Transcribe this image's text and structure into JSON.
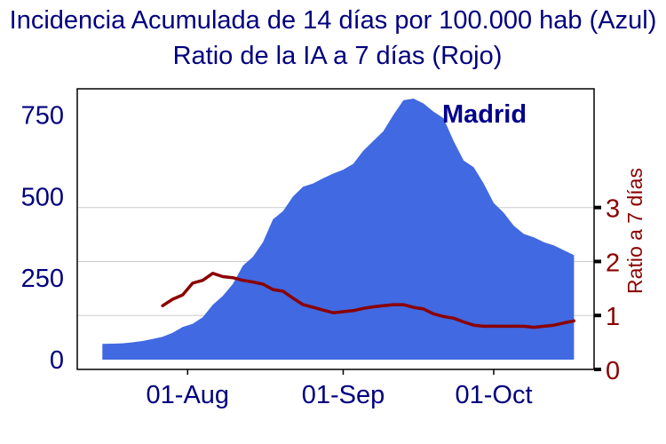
{
  "chart_data": {
    "type": "area",
    "title_line1": "Incidencia Acumulada de 14 días por 100.000 hab (Azul)",
    "title_line2": "Ratio de la IA a 7 días (Rojo)",
    "annotation": "Madrid",
    "x_ticks": [
      "01-Aug",
      "01-Sep",
      "01-Oct"
    ],
    "y_left_ticks": [
      "0",
      "250",
      "500",
      "750"
    ],
    "y_left_lim": [
      -30,
      830
    ],
    "y_right_ticks": [
      "0",
      "1",
      "2",
      "3"
    ],
    "y_right_lim": [
      0,
      5.2
    ],
    "ylabel_right": "Ratio a 7 días",
    "colors": {
      "area": "#4169e1",
      "ratio_line": "#8b0000",
      "left_axis_text": "#00007f",
      "right_axis_text": "#8b0000",
      "grid": "#cccccc"
    },
    "grid": true,
    "series": [
      {
        "type": "area",
        "axis": "left",
        "x": [
          "2020-07-15",
          "2020-07-17",
          "2020-07-19",
          "2020-07-21",
          "2020-07-23",
          "2020-07-25",
          "2020-07-27",
          "2020-07-29",
          "2020-07-31",
          "2020-08-02",
          "2020-08-04",
          "2020-08-06",
          "2020-08-08",
          "2020-08-10",
          "2020-08-12",
          "2020-08-14",
          "2020-08-16",
          "2020-08-18",
          "2020-08-20",
          "2020-08-22",
          "2020-08-24",
          "2020-08-26",
          "2020-08-28",
          "2020-08-30",
          "2020-09-01",
          "2020-09-03",
          "2020-09-05",
          "2020-09-07",
          "2020-09-09",
          "2020-09-11",
          "2020-09-13",
          "2020-09-15",
          "2020-09-17",
          "2020-09-19",
          "2020-09-21",
          "2020-09-23",
          "2020-09-25",
          "2020-09-27",
          "2020-09-29",
          "2020-10-01",
          "2020-10-03",
          "2020-10-05",
          "2020-10-07",
          "2020-10-09",
          "2020-10-11",
          "2020-10-13",
          "2020-10-15",
          "2020-10-17"
        ],
        "values": [
          48,
          49,
          50,
          53,
          57,
          63,
          70,
          82,
          100,
          110,
          130,
          168,
          195,
          232,
          288,
          315,
          360,
          430,
          455,
          500,
          530,
          540,
          556,
          570,
          582,
          600,
          640,
          670,
          700,
          750,
          795,
          800,
          785,
          760,
          740,
          670,
          610,
          590,
          540,
          480,
          450,
          410,
          385,
          375,
          360,
          350,
          335,
          320
        ]
      },
      {
        "type": "line",
        "axis": "right",
        "x": [
          "2020-07-27",
          "2020-07-29",
          "2020-07-31",
          "2020-08-02",
          "2020-08-04",
          "2020-08-06",
          "2020-08-08",
          "2020-08-10",
          "2020-08-12",
          "2020-08-14",
          "2020-08-16",
          "2020-08-18",
          "2020-08-20",
          "2020-08-22",
          "2020-08-24",
          "2020-08-26",
          "2020-08-28",
          "2020-08-30",
          "2020-09-01",
          "2020-09-03",
          "2020-09-05",
          "2020-09-07",
          "2020-09-09",
          "2020-09-11",
          "2020-09-13",
          "2020-09-15",
          "2020-09-17",
          "2020-09-19",
          "2020-09-21",
          "2020-09-23",
          "2020-09-25",
          "2020-09-27",
          "2020-09-29",
          "2020-10-01",
          "2020-10-03",
          "2020-10-05",
          "2020-10-07",
          "2020-10-09",
          "2020-10-11",
          "2020-10-13",
          "2020-10-15",
          "2020-10-17"
        ],
        "values": [
          1.18,
          1.3,
          1.38,
          1.6,
          1.65,
          1.78,
          1.72,
          1.7,
          1.65,
          1.62,
          1.58,
          1.48,
          1.45,
          1.32,
          1.2,
          1.15,
          1.1,
          1.05,
          1.07,
          1.09,
          1.13,
          1.16,
          1.18,
          1.2,
          1.2,
          1.15,
          1.12,
          1.03,
          0.98,
          0.95,
          0.88,
          0.82,
          0.8,
          0.8,
          0.8,
          0.8,
          0.8,
          0.78,
          0.8,
          0.82,
          0.86,
          0.9
        ]
      }
    ]
  }
}
